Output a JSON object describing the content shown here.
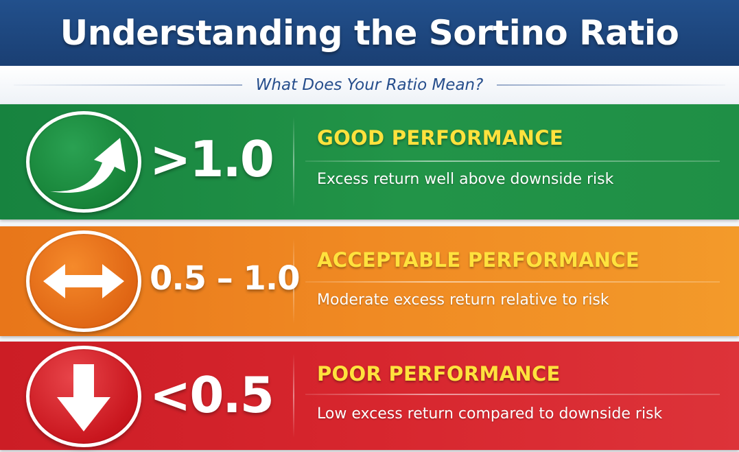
{
  "header": {
    "title": "Understanding the Sortino Ratio",
    "subtitle": "What Does Your Ratio Mean?",
    "background_color": "#1a3f73"
  },
  "tiers": [
    {
      "icon": "arrow-up-right-icon",
      "value": ">1.0",
      "label": "GOOD PERFORMANCE",
      "description": "Excess return well above downside risk",
      "color": "#1f8f46"
    },
    {
      "icon": "double-arrow-horizontal-icon",
      "value": "0.5 – 1.0",
      "label": "ACCEPTABLE PERFORMANCE",
      "description": "Moderate excess return relative to risk",
      "color": "#f08a23"
    },
    {
      "icon": "arrow-down-icon",
      "value": "<0.5",
      "label": "POOR PERFORMANCE",
      "description": "Low excess return compared to downside risk",
      "color": "#d7262e"
    }
  ],
  "label_color": "#ffe23d"
}
